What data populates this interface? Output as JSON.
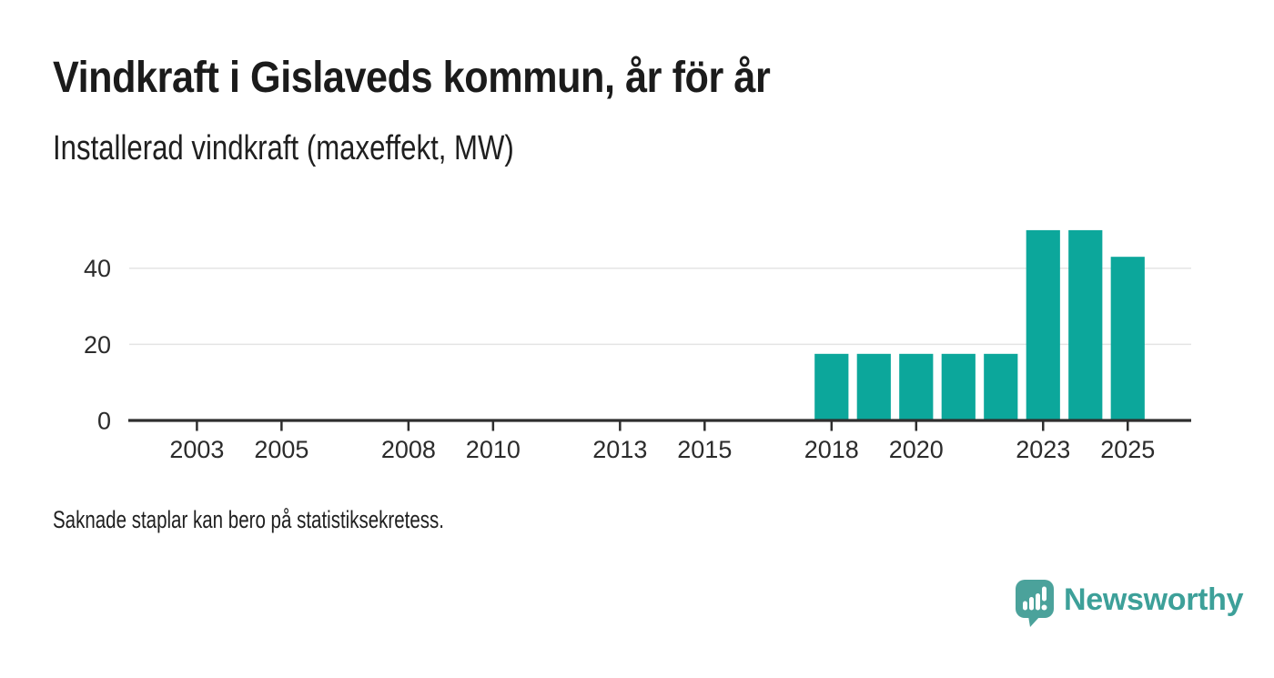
{
  "chart_data": {
    "type": "bar",
    "title": "Vindkraft i Gislaveds kommun, år för år",
    "subtitle": "Installerad vindkraft (maxeffekt, MW)",
    "ylabel": "Installerad vindkraft (maxeffekt, MW)",
    "categories": [
      2018,
      2019,
      2020,
      2021,
      2022,
      2023,
      2024,
      2025
    ],
    "values": [
      17.5,
      17.5,
      17.5,
      17.5,
      17.5,
      50,
      50,
      43
    ],
    "xticks": [
      2003,
      2005,
      2008,
      2010,
      2013,
      2015,
      2018,
      2020,
      2023,
      2025
    ],
    "yticks": [
      0,
      20,
      40
    ],
    "xlim": [
      2001.4,
      2026.5
    ],
    "ylim": [
      0,
      55
    ],
    "legend": "none",
    "grid": "horizontal-y",
    "bar_color": "#0ca79b",
    "axis_color": "#2e2e2e",
    "grid_color": "#e4e4e4",
    "tick_label_color": "#2b2b2b"
  },
  "footnote": "Saknade staplar kan bero på statistiksekretess.",
  "branding": {
    "name": "Newsworthy",
    "mark_color": "#4ba29b",
    "text_color": "#3da099",
    "mark_detail_color": "#ffffff"
  }
}
